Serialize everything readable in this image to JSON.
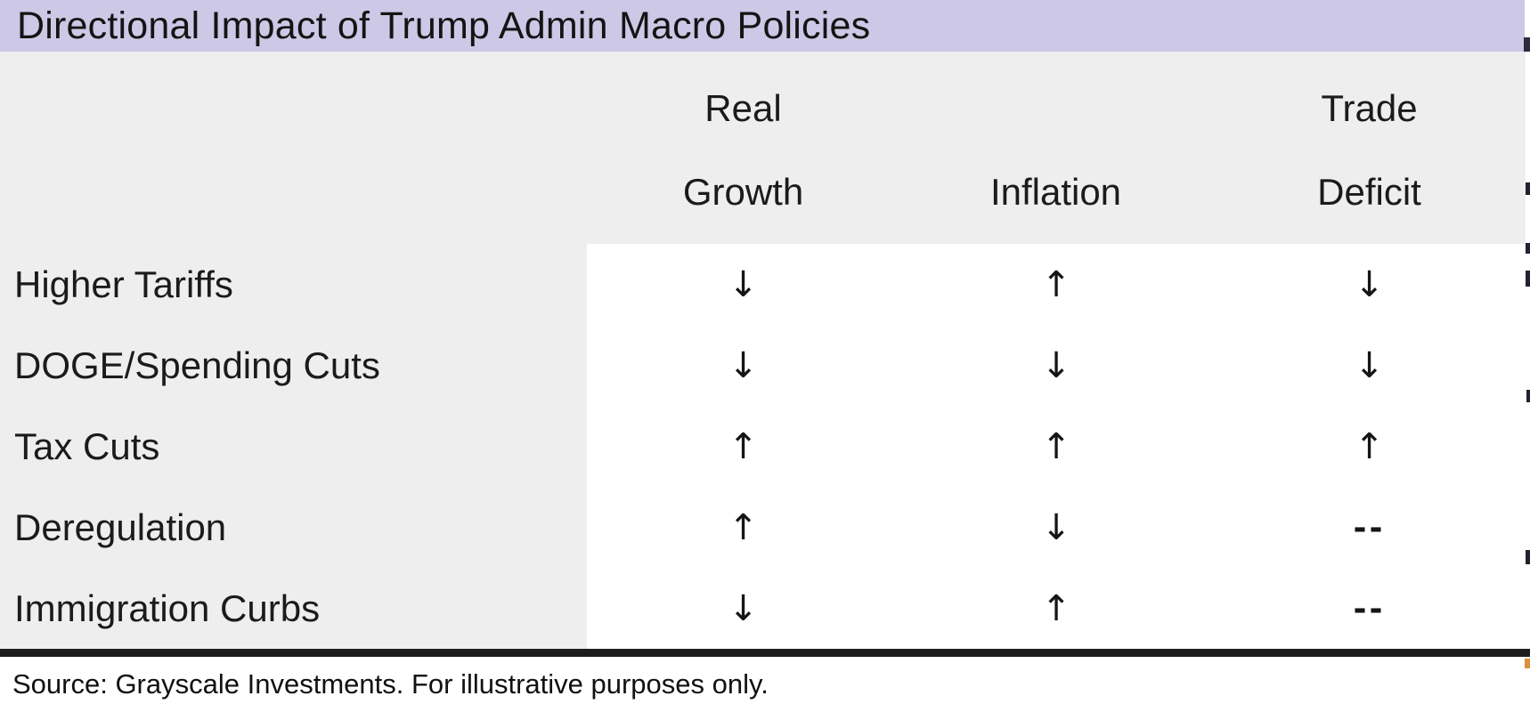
{
  "title": "Directional Impact of Trump Admin Macro Policies",
  "table": {
    "column_headers": [
      {
        "line1": "Real",
        "line2": "Growth"
      },
      {
        "line1": "",
        "line2": "Inflation"
      },
      {
        "line1": "Trade",
        "line2": "Deficit"
      }
    ],
    "rows": [
      {
        "label": "Higher Tariffs",
        "cells": [
          "↓",
          "↑",
          "↓"
        ]
      },
      {
        "label": "DOGE/Spending Cuts",
        "cells": [
          "↓",
          "↓",
          "↓"
        ]
      },
      {
        "label": "Tax Cuts",
        "cells": [
          "↑",
          "↑",
          "↑"
        ]
      },
      {
        "label": "Deregulation",
        "cells": [
          "↑",
          "↓",
          "--"
        ]
      },
      {
        "label": "Immigration Curbs",
        "cells": [
          "↓",
          "↑",
          "--"
        ]
      }
    ]
  },
  "footer": {
    "source_text": "Source: Grayscale Investments. For illustrative purposes only."
  },
  "colors": {
    "title_bar_background": "#cdc8e6",
    "header_background": "#efeeef",
    "data_panel_background": "#ffffff",
    "text": "#1b1b1b",
    "divider": "#1d1d1d"
  },
  "chart_data": {
    "type": "table",
    "title": "Directional Impact of Trump Admin Macro Policies",
    "columns": [
      "Real Growth",
      "Inflation",
      "Trade Deficit"
    ],
    "row_labels": [
      "Higher Tariffs",
      "DOGE/Spending Cuts",
      "Tax Cuts",
      "Deregulation",
      "Immigration Curbs"
    ],
    "values": [
      [
        "down",
        "up",
        "down"
      ],
      [
        "down",
        "down",
        "down"
      ],
      [
        "up",
        "up",
        "up"
      ],
      [
        "up",
        "down",
        "neutral"
      ],
      [
        "down",
        "up",
        "neutral"
      ]
    ],
    "symbol_legend": {
      "up": "↑",
      "down": "↓",
      "neutral": "--"
    },
    "source": "Source: Grayscale Investments. For illustrative purposes only."
  }
}
